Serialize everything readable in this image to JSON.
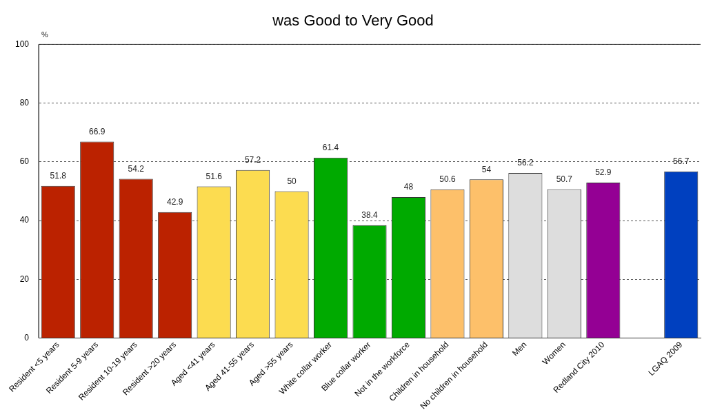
{
  "chart_data": {
    "type": "bar",
    "title": "was Good to Very Good",
    "ylabel": "%",
    "categories": [
      "Resident <5 years",
      "Resident 5-9 years",
      "Resident 10-19 years",
      "Resident >20 years",
      "Aged <41 years",
      "Aged 41-55 years",
      "Aged >55 years",
      "White collar worker",
      "Blue collar worker",
      "Not in the workforce",
      "Children in household",
      "No children in household",
      "Men",
      "Women",
      "Redland City 2010",
      null,
      "LGAQ 2009"
    ],
    "values": [
      51.8,
      66.9,
      54.2,
      42.9,
      51.6,
      57.2,
      50,
      61.4,
      38.4,
      48,
      50.6,
      54,
      56.2,
      50.7,
      52.9,
      null,
      56.7
    ],
    "colors": [
      "#bb2200",
      "#bb2200",
      "#bb2200",
      "#bb2200",
      "#fcdc50",
      "#fcdc50",
      "#fcdc50",
      "#00aa00",
      "#00aa00",
      "#00aa00",
      "#fdc06a",
      "#fdc06a",
      "#dddddd",
      "#dddddd",
      "#940094",
      "#ffffff",
      "#0040bf"
    ],
    "ylim": [
      0,
      100
    ],
    "yticks": [
      0,
      20,
      40,
      60,
      80,
      100
    ],
    "grid": "y",
    "data_labels": true,
    "legend": false
  }
}
